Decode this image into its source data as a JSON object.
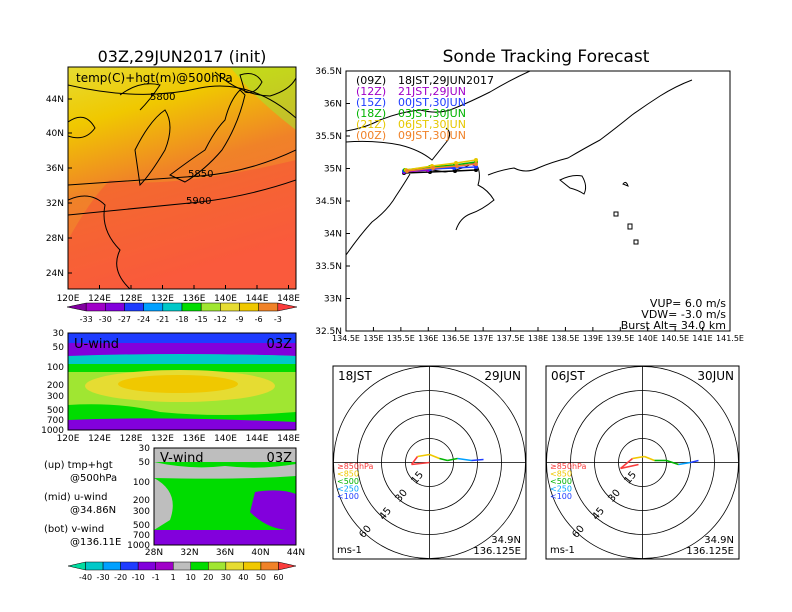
{
  "left_title": "03Z,29JUN2017 (init)",
  "right_title": "Sonde Tracking Forecast",
  "temp_map": {
    "overlay_label": "temp(C)+hgt(m)@500hPa",
    "lat_labels": [
      "44N",
      "40N",
      "36N",
      "32N",
      "28N",
      "24N"
    ],
    "lon_labels": [
      "120E",
      "124E",
      "128E",
      "132E",
      "136E",
      "140E",
      "144E",
      "148E"
    ],
    "contours": [
      "5800",
      "5850",
      "5900"
    ],
    "colorbar_labels": [
      "-33",
      "-30",
      "-27",
      "-24",
      "-21",
      "-18",
      "-15",
      "-12",
      "-9",
      "-6",
      "-3"
    ],
    "colorbar_colors": [
      "#a000c8",
      "#8200dc",
      "#1e3cff",
      "#00a0ff",
      "#00c8c8",
      "#00dc00",
      "#a0e632",
      "#e6dc32",
      "#f0c800",
      "#f08228",
      "#fa3c3c"
    ]
  },
  "u_wind": {
    "label": "U-wind",
    "time": "03Z",
    "pressure_labels": [
      "30",
      "50",
      "100",
      "200",
      "300",
      "500",
      "700",
      "1000"
    ],
    "lon_labels": [
      "120E",
      "124E",
      "128E",
      "132E",
      "136E",
      "140E",
      "144E",
      "148E"
    ]
  },
  "v_wind": {
    "label": "V-wind",
    "time": "03Z",
    "pressure_labels": [
      "30",
      "50",
      "100",
      "200",
      "300",
      "500",
      "700",
      "1000"
    ],
    "lat_labels": [
      "28N",
      "32N",
      "36N",
      "40N",
      "44N"
    ]
  },
  "notes": {
    "up": "(up) tmp+hgt",
    "up_level": "@500hPa",
    "mid": "(mid) u-wind",
    "mid_lat": "@34.86N",
    "bot": "(bot) v-wind",
    "bot_lon": "@136.11E"
  },
  "wind_colorbar_labels": [
    "-40",
    "-30",
    "-20",
    "-10",
    "-1",
    "1",
    "10",
    "20",
    "30",
    "40",
    "50",
    "60"
  ],
  "wind_colorbar_colors": [
    "#00c8c8",
    "#00a0ff",
    "#1e3cff",
    "#8200dc",
    "#a000c8",
    "#bebebe",
    "#00dc00",
    "#a0e632",
    "#e6dc32",
    "#f0c800",
    "#f08228",
    "#fa3c3c"
  ],
  "track_map": {
    "legend": [
      {
        "code": "(09Z)",
        "time": "18JST,29JUN2017",
        "color": "#000000"
      },
      {
        "code": "(12Z)",
        "time": "21JST,29JUN",
        "color": "#a000c8"
      },
      {
        "code": "(15Z)",
        "time": "00JST,30JUN",
        "color": "#1e3cff"
      },
      {
        "code": "(18Z)",
        "time": "03JST,30JUN",
        "color": "#00b400"
      },
      {
        "code": "(21Z)",
        "time": "06JST,30JUN",
        "color": "#e6c800"
      },
      {
        "code": "(00Z)",
        "time": "09JST,30JUN",
        "color": "#f08228"
      }
    ],
    "lat_labels": [
      "36.5N",
      "36N",
      "35.5N",
      "35N",
      "34.5N",
      "34N",
      "33.5N",
      "33N",
      "32.5N"
    ],
    "lon_labels": [
      "134.5E",
      "135E",
      "135.5E",
      "136E",
      "136.5E",
      "137E",
      "137.5E",
      "138E",
      "138.5E",
      "139E",
      "139.5E",
      "140E",
      "140.5E",
      "141E",
      "141.5E"
    ],
    "params": {
      "vup": "VUP= 6.0 m/s",
      "vdw": "VDW= -3.0 m/s",
      "burst": "Burst Alt= 34.0 km"
    }
  },
  "hodographs": [
    {
      "left": "18JST",
      "right": "29JUN",
      "ring_labels": [
        "15",
        "30",
        "45",
        "60"
      ],
      "levels": [
        "≥850hPa",
        "<850",
        "<500",
        "<250",
        "<100"
      ],
      "level_colors": [
        "#fa3c3c",
        "#f0c800",
        "#00b400",
        "#00a0ff",
        "#1e3cff"
      ],
      "unit": "ms-1",
      "lat": "34.9N",
      "lon": "136.125E"
    },
    {
      "left": "06JST",
      "right": "30JUN",
      "ring_labels": [
        "15",
        "30",
        "45",
        "60"
      ],
      "levels": [
        "≥850hPa",
        "<850",
        "<500",
        "<250",
        "<100"
      ],
      "level_colors": [
        "#fa3c3c",
        "#f0c800",
        "#00b400",
        "#00a0ff",
        "#1e3cff"
      ],
      "unit": "ms-1",
      "lat": "34.9N",
      "lon": "136.125E"
    }
  ]
}
